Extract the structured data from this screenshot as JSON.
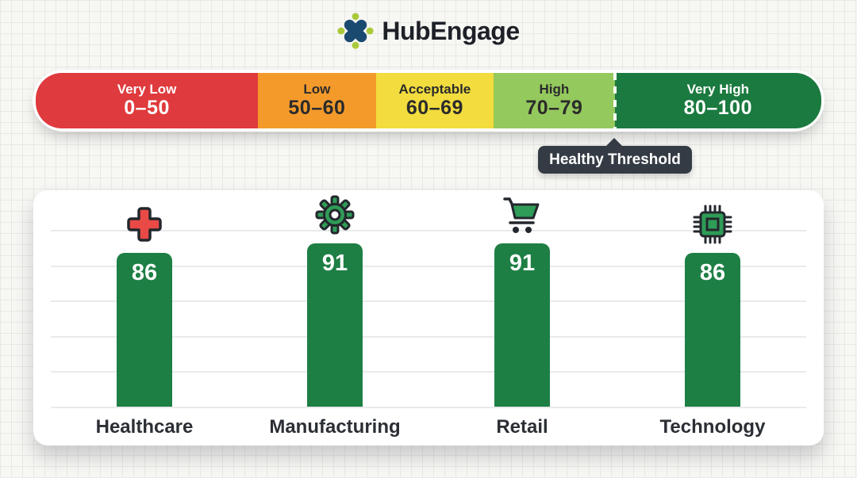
{
  "brand": {
    "name": "HubEngage"
  },
  "scale": {
    "segments": [
      {
        "label": "Very Low",
        "range": "0–50",
        "color": "#df3a3d"
      },
      {
        "label": "Low",
        "range": "50–60",
        "color": "#f49a2b"
      },
      {
        "label": "Acceptable",
        "range": "60–69",
        "color": "#f2dc3e"
      },
      {
        "label": "High",
        "range": "70–79",
        "color": "#94c95d"
      },
      {
        "label": "Very High",
        "range": "80–100",
        "color": "#1b7a3f"
      }
    ],
    "threshold": {
      "label": "Healthy Threshold",
      "position_pct": 73.7
    }
  },
  "chart_data": {
    "type": "bar",
    "categories": [
      "Healthcare",
      "Manufacturing",
      "Retail",
      "Technology"
    ],
    "values": [
      86,
      91,
      91,
      86
    ],
    "icons": [
      "medical-cross-icon",
      "gear-icon",
      "shopping-cart-icon",
      "chip-icon"
    ],
    "bar_color": "#1e7f45",
    "value_label_color": "#ffffff",
    "ylim": [
      0,
      100
    ],
    "grid": true,
    "legend_position": "none"
  }
}
